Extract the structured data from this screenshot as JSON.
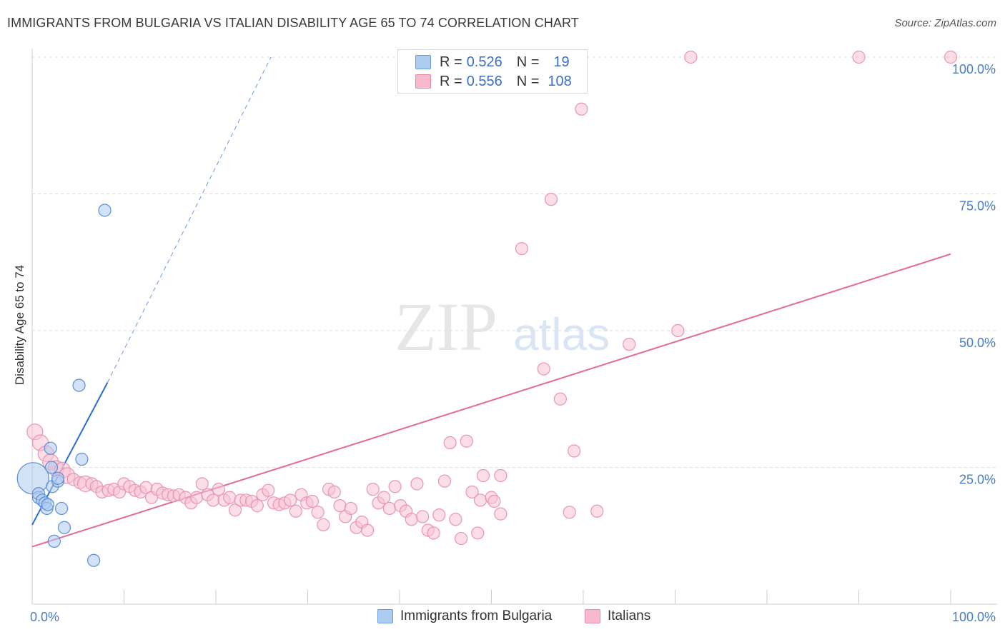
{
  "title": "IMMIGRANTS FROM BULGARIA VS ITALIAN DISABILITY AGE 65 TO 74 CORRELATION CHART",
  "source": "Source: ZipAtlas.com",
  "watermark": {
    "zip": "ZIP",
    "atlas": "atlas"
  },
  "legend": {
    "r_label": "R =",
    "n_label": "N =",
    "rows": [
      {
        "name": "Immigrants from Bulgaria",
        "r": "0.526",
        "n": "19",
        "fill": "#aecbf0",
        "stroke": "#6a9de0"
      },
      {
        "name": "Italians",
        "r": "0.556",
        "n": "108",
        "fill": "#f7b9cd",
        "stroke": "#e88aa8"
      }
    ]
  },
  "colors": {
    "blue_fill": "#aecbf0",
    "blue_stroke": "#5b8fd6",
    "blue_line": "#2a6fd0",
    "pink_fill": "#f7c3d3",
    "pink_stroke": "#e995b0",
    "pink_line": "#e46b94",
    "grid": "#dddddd",
    "axis_text": "#4a7cc4"
  },
  "chart_data": {
    "type": "scatter",
    "title": "IMMIGRANTS FROM BULGARIA VS ITALIAN DISABILITY AGE 65 TO 74 CORRELATION CHART",
    "xlabel": "",
    "ylabel": "Disability Age 65 to 74",
    "xlim": [
      0,
      100
    ],
    "ylim": [
      0,
      105
    ],
    "x_tick_labels": [
      "0.0%",
      "100.0%"
    ],
    "y_ticks": [
      25,
      50,
      75,
      100
    ],
    "y_tick_labels": [
      "25.0%",
      "50.0%",
      "75.0%",
      "100.0%"
    ],
    "grid": true,
    "legend_position": "top-center",
    "series": [
      {
        "name": "Immigrants from Bulgaria",
        "points": [
          {
            "x": 0.1,
            "y": 23.0,
            "s": 3
          },
          {
            "x": 0.7,
            "y": 19.5,
            "s": 1
          },
          {
            "x": 0.7,
            "y": 20.2,
            "s": 1
          },
          {
            "x": 1.1,
            "y": 19.0,
            "s": 1
          },
          {
            "x": 1.4,
            "y": 18.5,
            "s": 1
          },
          {
            "x": 1.6,
            "y": 17.5,
            "s": 1
          },
          {
            "x": 1.7,
            "y": 18.2,
            "s": 1
          },
          {
            "x": 2.0,
            "y": 28.5,
            "s": 1
          },
          {
            "x": 2.2,
            "y": 21.5,
            "s": 1
          },
          {
            "x": 2.4,
            "y": 11.5,
            "s": 1
          },
          {
            "x": 2.8,
            "y": 22.5,
            "s": 1
          },
          {
            "x": 2.8,
            "y": 23.0,
            "s": 1
          },
          {
            "x": 3.2,
            "y": 17.5,
            "s": 1
          },
          {
            "x": 3.5,
            "y": 14.0,
            "s": 1
          },
          {
            "x": 5.1,
            "y": 40.0,
            "s": 1
          },
          {
            "x": 5.4,
            "y": 26.5,
            "s": 1
          },
          {
            "x": 6.7,
            "y": 8.0,
            "s": 1
          },
          {
            "x": 7.9,
            "y": 72.0,
            "s": 1
          },
          {
            "x": 2.1,
            "y": 25.0,
            "s": 1
          }
        ],
        "trend": {
          "x0": 0,
          "y0": 14.5,
          "x1": 8.2,
          "y1": 40.5,
          "dash_to": {
            "x": 26,
            "y": 100
          }
        }
      },
      {
        "name": "Italians",
        "points": [
          {
            "x": 0.3,
            "y": 31.5,
            "s": 2
          },
          {
            "x": 0.9,
            "y": 29.5,
            "s": 2
          },
          {
            "x": 1.5,
            "y": 27.5,
            "s": 2
          },
          {
            "x": 2.0,
            "y": 26.0,
            "s": 2
          },
          {
            "x": 2.6,
            "y": 24.8,
            "s": 2
          },
          {
            "x": 3.3,
            "y": 24.5,
            "s": 2
          },
          {
            "x": 3.8,
            "y": 23.5,
            "s": 2
          },
          {
            "x": 4.5,
            "y": 22.8,
            "s": 1
          },
          {
            "x": 5.2,
            "y": 22.2,
            "s": 1
          },
          {
            "x": 5.8,
            "y": 22.0,
            "s": 2
          },
          {
            "x": 6.5,
            "y": 22.0,
            "s": 1
          },
          {
            "x": 7.0,
            "y": 21.5,
            "s": 1
          },
          {
            "x": 7.6,
            "y": 20.5,
            "s": 1
          },
          {
            "x": 8.3,
            "y": 20.8,
            "s": 1
          },
          {
            "x": 8.9,
            "y": 21.0,
            "s": 1
          },
          {
            "x": 9.5,
            "y": 20.5,
            "s": 1
          },
          {
            "x": 10.0,
            "y": 22.0,
            "s": 1
          },
          {
            "x": 10.6,
            "y": 21.5,
            "s": 1
          },
          {
            "x": 11.2,
            "y": 20.8,
            "s": 1
          },
          {
            "x": 11.8,
            "y": 20.5,
            "s": 1
          },
          {
            "x": 12.4,
            "y": 21.3,
            "s": 1
          },
          {
            "x": 13.0,
            "y": 19.5,
            "s": 1
          },
          {
            "x": 13.6,
            "y": 21.0,
            "s": 1
          },
          {
            "x": 14.2,
            "y": 20.3,
            "s": 1
          },
          {
            "x": 14.8,
            "y": 20.0,
            "s": 1
          },
          {
            "x": 15.4,
            "y": 19.8,
            "s": 1
          },
          {
            "x": 16.0,
            "y": 20.0,
            "s": 1
          },
          {
            "x": 16.7,
            "y": 19.5,
            "s": 1
          },
          {
            "x": 17.3,
            "y": 18.5,
            "s": 1
          },
          {
            "x": 17.9,
            "y": 19.5,
            "s": 1
          },
          {
            "x": 18.5,
            "y": 22.0,
            "s": 1
          },
          {
            "x": 19.1,
            "y": 20.0,
            "s": 1
          },
          {
            "x": 19.7,
            "y": 19.0,
            "s": 1
          },
          {
            "x": 20.3,
            "y": 21.0,
            "s": 1
          },
          {
            "x": 20.9,
            "y": 19.0,
            "s": 1
          },
          {
            "x": 21.5,
            "y": 19.5,
            "s": 1
          },
          {
            "x": 22.1,
            "y": 17.2,
            "s": 1
          },
          {
            "x": 22.7,
            "y": 19.0,
            "s": 1
          },
          {
            "x": 23.3,
            "y": 19.0,
            "s": 1
          },
          {
            "x": 23.9,
            "y": 18.8,
            "s": 1
          },
          {
            "x": 24.5,
            "y": 18.0,
            "s": 1
          },
          {
            "x": 25.1,
            "y": 20.0,
            "s": 1
          },
          {
            "x": 25.7,
            "y": 20.8,
            "s": 1
          },
          {
            "x": 26.3,
            "y": 18.5,
            "s": 1
          },
          {
            "x": 26.9,
            "y": 18.2,
            "s": 1
          },
          {
            "x": 27.5,
            "y": 18.5,
            "s": 1
          },
          {
            "x": 28.1,
            "y": 19.0,
            "s": 1
          },
          {
            "x": 28.7,
            "y": 17.0,
            "s": 1
          },
          {
            "x": 29.3,
            "y": 20.0,
            "s": 1
          },
          {
            "x": 29.9,
            "y": 18.5,
            "s": 1
          },
          {
            "x": 30.5,
            "y": 18.8,
            "s": 1
          },
          {
            "x": 31.1,
            "y": 16.8,
            "s": 1
          },
          {
            "x": 31.7,
            "y": 14.5,
            "s": 1
          },
          {
            "x": 32.3,
            "y": 21.0,
            "s": 1
          },
          {
            "x": 32.9,
            "y": 20.5,
            "s": 1
          },
          {
            "x": 33.5,
            "y": 18.0,
            "s": 1
          },
          {
            "x": 34.1,
            "y": 16.0,
            "s": 1
          },
          {
            "x": 34.7,
            "y": 17.5,
            "s": 1
          },
          {
            "x": 35.3,
            "y": 14.0,
            "s": 1
          },
          {
            "x": 35.9,
            "y": 15.0,
            "s": 1
          },
          {
            "x": 36.5,
            "y": 13.5,
            "s": 1
          },
          {
            "x": 37.1,
            "y": 21.0,
            "s": 1
          },
          {
            "x": 37.7,
            "y": 18.5,
            "s": 1
          },
          {
            "x": 38.3,
            "y": 19.5,
            "s": 1
          },
          {
            "x": 38.9,
            "y": 17.5,
            "s": 1
          },
          {
            "x": 39.5,
            "y": 21.5,
            "s": 1
          },
          {
            "x": 40.1,
            "y": 18.0,
            "s": 1
          },
          {
            "x": 40.7,
            "y": 17.0,
            "s": 1
          },
          {
            "x": 41.3,
            "y": 15.5,
            "s": 1
          },
          {
            "x": 41.9,
            "y": 22.0,
            "s": 1
          },
          {
            "x": 42.5,
            "y": 16.0,
            "s": 1
          },
          {
            "x": 43.1,
            "y": 13.5,
            "s": 1
          },
          {
            "x": 43.7,
            "y": 13.0,
            "s": 1
          },
          {
            "x": 44.3,
            "y": 16.3,
            "s": 1
          },
          {
            "x": 44.9,
            "y": 22.5,
            "s": 1
          },
          {
            "x": 45.5,
            "y": 29.5,
            "s": 1
          },
          {
            "x": 46.1,
            "y": 15.5,
            "s": 1
          },
          {
            "x": 46.7,
            "y": 12.0,
            "s": 1
          },
          {
            "x": 47.3,
            "y": 29.8,
            "s": 1
          },
          {
            "x": 47.9,
            "y": 20.5,
            "s": 1
          },
          {
            "x": 48.5,
            "y": 13.0,
            "s": 1
          },
          {
            "x": 49.1,
            "y": 23.5,
            "s": 1
          },
          {
            "x": 48.8,
            "y": 19.0,
            "s": 1
          },
          {
            "x": 50.0,
            "y": 19.5,
            "s": 1
          },
          {
            "x": 50.3,
            "y": 18.8,
            "s": 1
          },
          {
            "x": 51.0,
            "y": 23.5,
            "s": 1
          },
          {
            "x": 51.0,
            "y": 16.5,
            "s": 1
          },
          {
            "x": 53.3,
            "y": 65.0,
            "s": 1
          },
          {
            "x": 55.7,
            "y": 43.0,
            "s": 1
          },
          {
            "x": 56.5,
            "y": 74.0,
            "s": 1
          },
          {
            "x": 57.5,
            "y": 37.5,
            "s": 1
          },
          {
            "x": 58.5,
            "y": 16.8,
            "s": 1
          },
          {
            "x": 59.0,
            "y": 28.0,
            "s": 1
          },
          {
            "x": 59.8,
            "y": 90.5,
            "s": 1
          },
          {
            "x": 61.5,
            "y": 17.0,
            "s": 1
          },
          {
            "x": 65.0,
            "y": 47.5,
            "s": 1
          },
          {
            "x": 70.3,
            "y": 50.0,
            "s": 1
          },
          {
            "x": 71.7,
            "y": 100.0,
            "s": 1
          },
          {
            "x": 90.0,
            "y": 100.0,
            "s": 1
          },
          {
            "x": 100.0,
            "y": 100.0,
            "s": 1
          }
        ],
        "trend": {
          "x0": 0,
          "y0": 10.5,
          "x1": 100,
          "y1": 64.0
        }
      }
    ]
  }
}
